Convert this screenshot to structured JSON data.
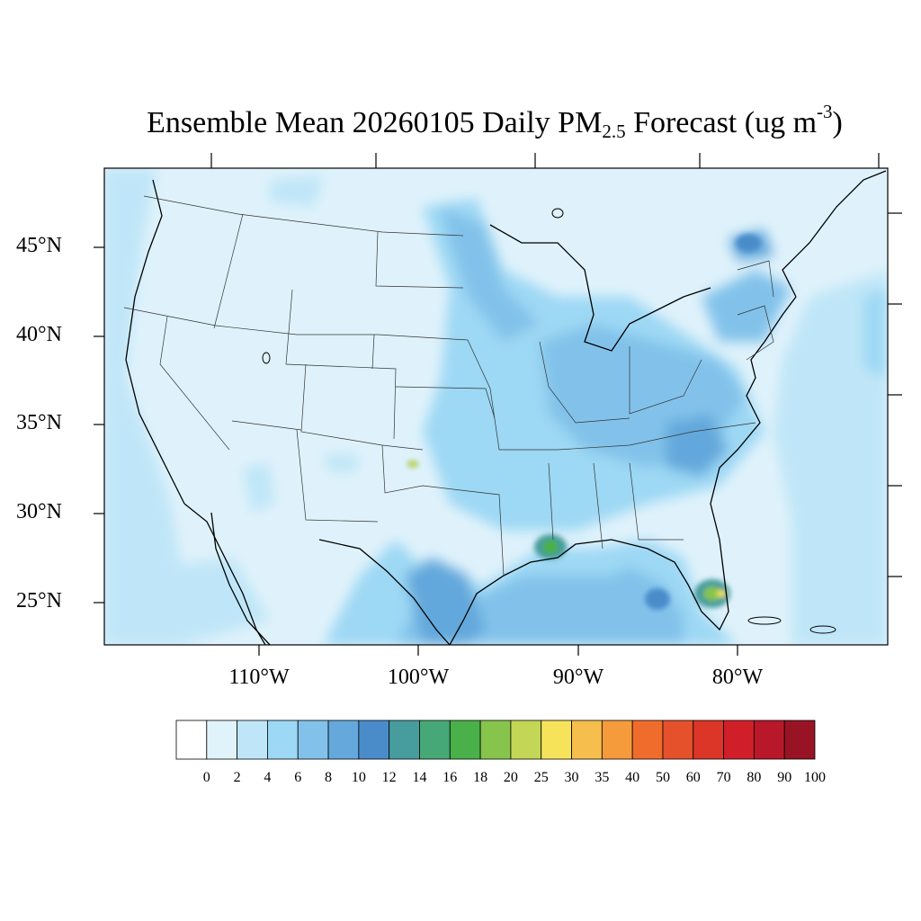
{
  "title": {
    "prefix": "Ensemble Mean 20260105 Daily PM",
    "subscript": "2.5",
    "middle": " Forecast (ug m",
    "superscript": "-3",
    "suffix": ")"
  },
  "lat_ticks": [
    "45°N",
    "40°N",
    "35°N",
    "30°N",
    "25°N"
  ],
  "lon_ticks": [
    "110°W",
    "100°W",
    "90°W",
    "80°W"
  ],
  "colorbar": {
    "labels": [
      "0",
      "2",
      "4",
      "6",
      "8",
      "10",
      "12",
      "14",
      "16",
      "18",
      "20",
      "25",
      "30",
      "35",
      "40",
      "50",
      "60",
      "70",
      "80",
      "90",
      "100"
    ],
    "colors": [
      "#ffffff",
      "#e0f3fb",
      "#bfe6f8",
      "#9dd8f4",
      "#82c2ea",
      "#64a8dc",
      "#4a8cca",
      "#479c9e",
      "#46a876",
      "#4ab04a",
      "#87c44c",
      "#c3d656",
      "#f6e35a",
      "#f6be4c",
      "#f59b3c",
      "#f06c2c",
      "#e5512a",
      "#dc3628",
      "#d11f2a",
      "#b8182a",
      "#981424"
    ]
  }
}
